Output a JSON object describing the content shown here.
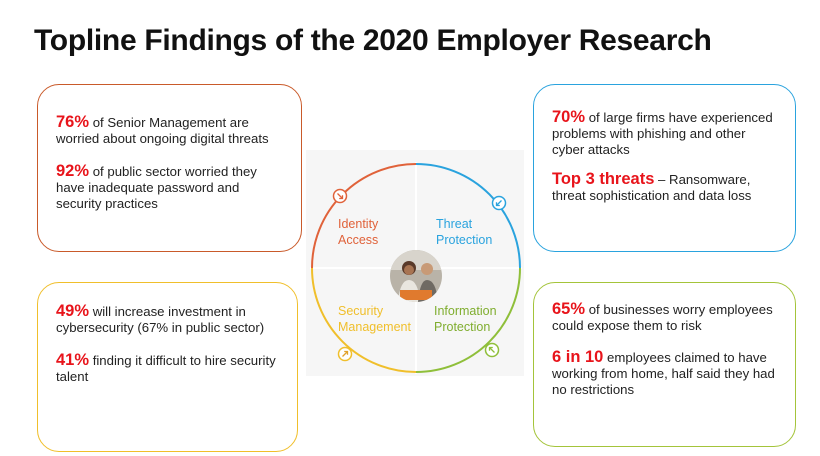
{
  "title": "Topline Findings of the 2020 Employer Research",
  "cards": {
    "c1": {
      "p1": {
        "hl": "76%",
        "text": " of  Senior Management are worried about ongoing digital threats"
      },
      "p2": {
        "hl": "92%",
        "text": " of public sector worried they have inadequate password and security practices"
      }
    },
    "c2": {
      "p1": {
        "hl": "70%",
        "text": " of large firms have experienced problems with phishing and other cyber attacks"
      },
      "p2": {
        "hl": "Top 3 threats",
        "text": " – Ransomware, threat sophistication and data loss"
      }
    },
    "c3": {
      "p1": {
        "hl": "49%",
        "text": " will increase investment in cybersecurity (67% in public sector)"
      },
      "p2": {
        "hl": "41%",
        "text": " finding it difficult to hire security talent"
      }
    },
    "c4": {
      "p1": {
        "hl": "65%",
        "text": " of businesses worry employees could expose them to risk"
      },
      "p2": {
        "hl": "6 in 10",
        "text": " employees claimed to have working from home, half said they had no restrictions"
      }
    }
  },
  "segments": {
    "identity": {
      "line1": "Identity",
      "line2": "Access",
      "color": "#e0623a"
    },
    "threat": {
      "line1": "Threat",
      "line2": "Protection",
      "color": "#2aa3de"
    },
    "security": {
      "line1": "Security",
      "line2": "Management",
      "color": "#f0bf2b"
    },
    "information": {
      "line1": "Information",
      "line2": "Protection",
      "color": "#8fbf3a"
    }
  },
  "colors": {
    "highlight": "#e8141b"
  }
}
